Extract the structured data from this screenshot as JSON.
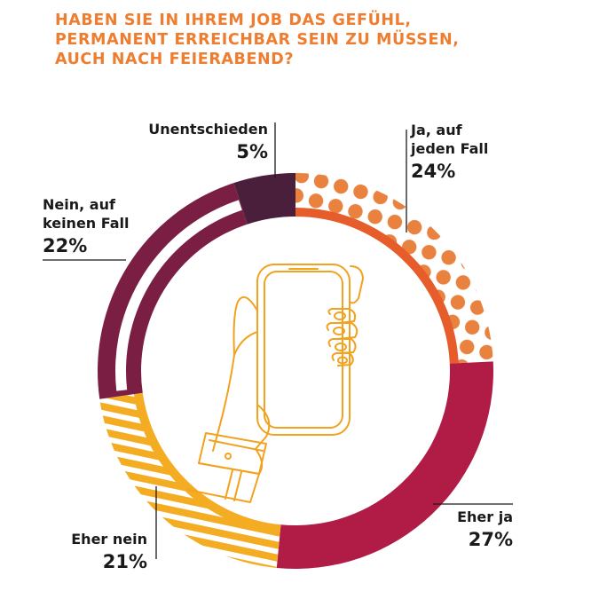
{
  "title_lines": [
    "HABEN SIE IN IHREM JOB DAS GEFÜHL,",
    "PERMANENT ERREICHBAR SEIN ZU MÜSSEN,",
    "AUCH NACH FEIERABEND?"
  ],
  "colors": {
    "title": "#ee7d2f",
    "ja_auf_jeden_fall": "#e8823e",
    "eher_ja": "#b01c46",
    "eher_nein": "#f4ad23",
    "nein_auf_keinen_fall": "#7a1f43",
    "unentschieden": "#4a1f3c",
    "ring": "#e65c2a",
    "hand_icon": "#f2a21f"
  },
  "icon": "hand-holding-smartphone-icon",
  "chart_data": {
    "type": "pie",
    "style": "donut",
    "title": "HABEN SIE IN IHREM JOB DAS GEFÜHL, PERMANENT ERREICHBAR SEIN ZU MÜSSEN, AUCH NACH FEIERABEND?",
    "slices": [
      {
        "label_lines": [
          "Ja, auf",
          "jeden Fall"
        ],
        "label": "Ja, auf jeden Fall",
        "value": 24,
        "value_label": "24%",
        "pattern": "dots"
      },
      {
        "label_lines": [
          "Eher ja"
        ],
        "label": "Eher ja",
        "value": 27,
        "value_label": "27%",
        "pattern": "solid"
      },
      {
        "label_lines": [
          "Eher nein"
        ],
        "label": "Eher nein",
        "value": 21,
        "value_label": "21%",
        "pattern": "stripes"
      },
      {
        "label_lines": [
          "Nein, auf",
          "keinen Fall"
        ],
        "label": "Nein, auf keinen Fall",
        "value": 22,
        "value_label": "22%",
        "pattern": "outline"
      },
      {
        "label_lines": [
          "Unentschieden"
        ],
        "label": "Unentschieden",
        "value": 5,
        "value_label": "5%",
        "pattern": "solid"
      }
    ]
  }
}
